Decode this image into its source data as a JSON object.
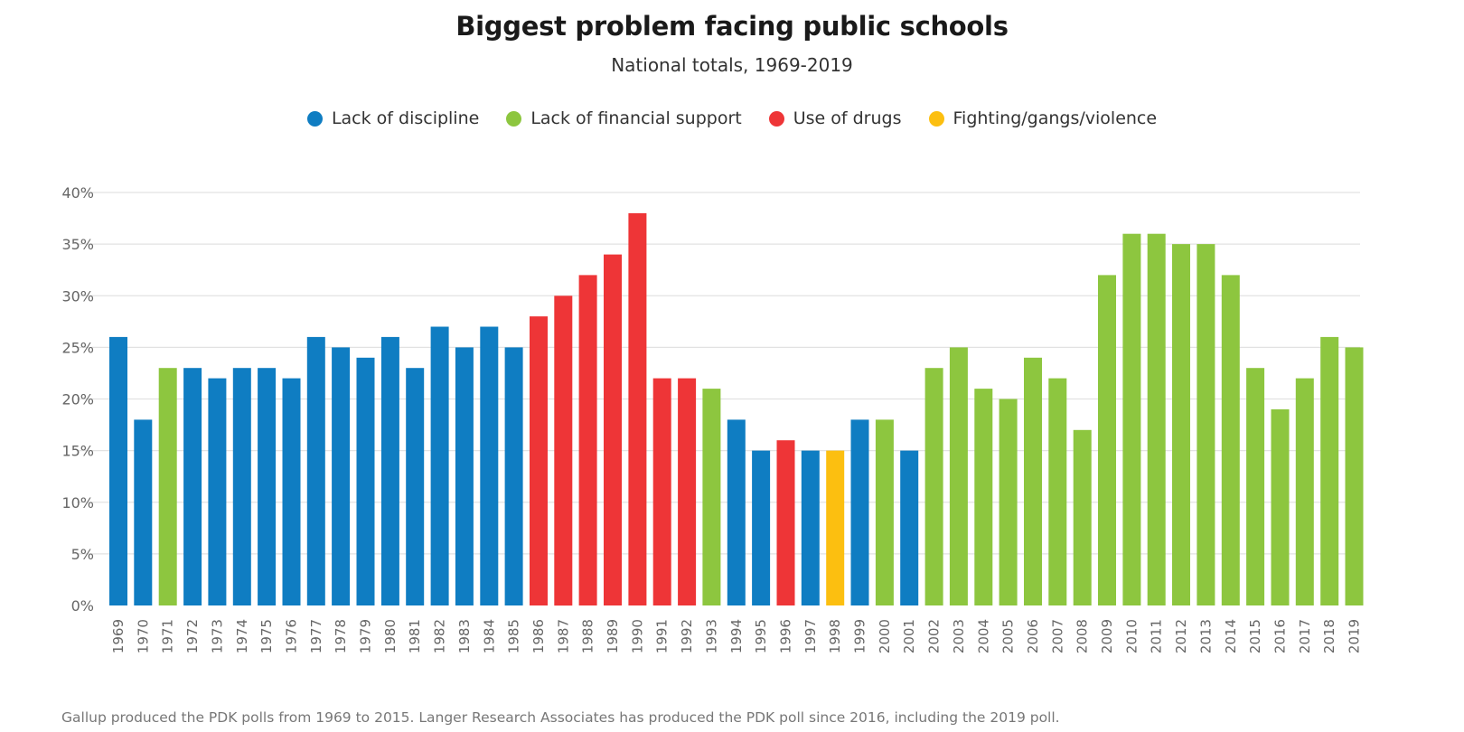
{
  "colors": {
    "Lack of discipline": "#0f7dc2",
    "Lack of financial support": "#8dc63f",
    "Use of drugs": "#ee3537",
    "Fighting/gangs/violence": "#fcbf10",
    "grid": "#e2e2e2",
    "tick_text": "#666666"
  },
  "chart_data": {
    "type": "bar",
    "title": "Biggest problem facing public schools",
    "subtitle": "National totals, 1969-2019",
    "xlabel": "",
    "ylabel": "",
    "ylim": [
      0,
      40
    ],
    "yticks": [
      0,
      5,
      10,
      15,
      20,
      25,
      30,
      35,
      40
    ],
    "ytick_labels": [
      "0%",
      "5%",
      "10%",
      "15%",
      "20%",
      "25%",
      "30%",
      "35%",
      "40%"
    ],
    "grid": true,
    "legend_position": "top-center",
    "legend": [
      "Lack of discipline",
      "Lack of financial support",
      "Use of drugs",
      "Fighting/gangs/violence"
    ],
    "categories": [
      "1969",
      "1970",
      "1971",
      "1972",
      "1973",
      "1974",
      "1975",
      "1976",
      "1977",
      "1978",
      "1979",
      "1980",
      "1981",
      "1982",
      "1983",
      "1984",
      "1985",
      "1986",
      "1987",
      "1988",
      "1989",
      "1990",
      "1991",
      "1992",
      "1993",
      "1994",
      "1995",
      "1996",
      "1997",
      "1998",
      "1999",
      "2000",
      "2001",
      "2002",
      "2003",
      "2004",
      "2005",
      "2006",
      "2007",
      "2008",
      "2009",
      "2010",
      "2011",
      "2012",
      "2013",
      "2014",
      "2015",
      "2016",
      "2017",
      "2018",
      "2019"
    ],
    "values": [
      26,
      18,
      23,
      23,
      22,
      23,
      23,
      22,
      26,
      25,
      24,
      26,
      23,
      27,
      25,
      27,
      25,
      28,
      30,
      32,
      34,
      38,
      22,
      22,
      21,
      18,
      15,
      16,
      15,
      15,
      18,
      18,
      15,
      23,
      25,
      21,
      20,
      24,
      22,
      17,
      32,
      36,
      36,
      35,
      35,
      32,
      23,
      19,
      22,
      26,
      25
    ],
    "problem": [
      "Lack of discipline",
      "Lack of discipline",
      "Lack of financial support",
      "Lack of discipline",
      "Lack of discipline",
      "Lack of discipline",
      "Lack of discipline",
      "Lack of discipline",
      "Lack of discipline",
      "Lack of discipline",
      "Lack of discipline",
      "Lack of discipline",
      "Lack of discipline",
      "Lack of discipline",
      "Lack of discipline",
      "Lack of discipline",
      "Lack of discipline",
      "Use of drugs",
      "Use of drugs",
      "Use of drugs",
      "Use of drugs",
      "Use of drugs",
      "Use of drugs",
      "Use of drugs",
      "Lack of financial support",
      "Lack of discipline",
      "Lack of discipline",
      "Use of drugs",
      "Lack of discipline",
      "Fighting/gangs/violence",
      "Lack of discipline",
      "Lack of financial support",
      "Lack of discipline",
      "Lack of financial support",
      "Lack of financial support",
      "Lack of financial support",
      "Lack of financial support",
      "Lack of financial support",
      "Lack of financial support",
      "Lack of financial support",
      "Lack of financial support",
      "Lack of financial support",
      "Lack of financial support",
      "Lack of financial support",
      "Lack of financial support",
      "Lack of financial support",
      "Lack of financial support",
      "Lack of financial support",
      "Lack of financial support",
      "Lack of financial support",
      "Lack of financial support"
    ]
  },
  "footer": "Gallup produced the PDK polls from 1969 to 2015. Langer Research Associates has produced the PDK poll since 2016, including the 2019 poll."
}
